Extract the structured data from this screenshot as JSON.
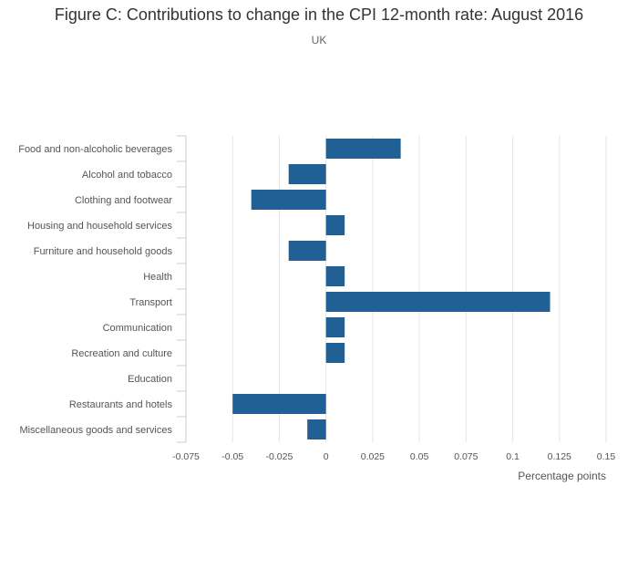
{
  "title": "Figure C: Contributions to change in the CPI 12-month rate: August 2016",
  "subtitle": "UK",
  "colors": {
    "bar": "#206095",
    "grid": "#e6e6e6",
    "axis": "#cccccc",
    "text": "#555555"
  },
  "chart_data": {
    "type": "bar",
    "orientation": "horizontal",
    "categories": [
      "Food and non-alcoholic beverages",
      "Alcohol and tobacco",
      "Clothing and footwear",
      "Housing and household services",
      "Furniture and household goods",
      "Health",
      "Transport",
      "Communication",
      "Recreation and culture",
      "Education",
      "Restaurants and hotels",
      "Miscellaneous goods and services"
    ],
    "values": [
      0.04,
      -0.02,
      -0.04,
      0.01,
      -0.02,
      0.01,
      0.12,
      0.01,
      0.01,
      0,
      -0.05,
      -0.01
    ],
    "xlabel": "Percentage points",
    "ylabel": "",
    "xlim": [
      -0.075,
      0.15
    ],
    "xticks": [
      -0.075,
      -0.05,
      -0.025,
      0,
      0.025,
      0.05,
      0.075,
      0.1,
      0.125,
      0.15
    ],
    "xtick_labels": [
      "-0.075",
      "-0.05",
      "-0.025",
      "0",
      "0.025",
      "0.05",
      "0.075",
      "0.1",
      "0.125",
      "0.15"
    ],
    "grid": true
  }
}
